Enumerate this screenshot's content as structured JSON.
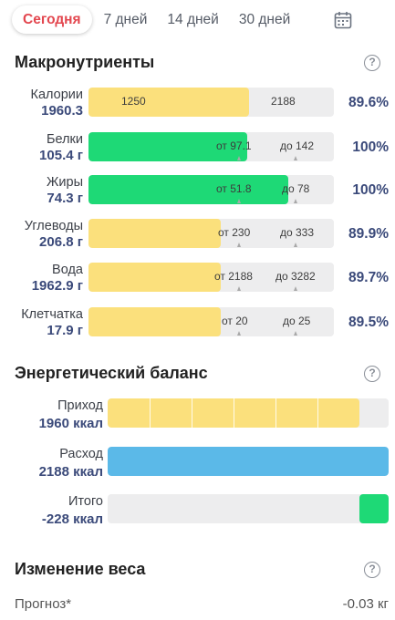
{
  "tabs": [
    {
      "label": "Сегодня",
      "active": true
    },
    {
      "label": "7 дней"
    },
    {
      "label": "14 дней"
    },
    {
      "label": "30 дней"
    }
  ],
  "calendar_icon": "calendar-icon",
  "colors": {
    "accent": "#e3474f",
    "yellow": "#fbe07c",
    "green": "#1ed976",
    "blue": "#5bb9e8",
    "value_text": "#3b4a7a"
  },
  "macros": {
    "title": "Макронутриенты",
    "help": "?",
    "rows": [
      {
        "name": "Калории",
        "value": "1960.3",
        "label_a": "1250",
        "label_b": "2188",
        "percent": "89.6%",
        "fill_fraction": 0.655,
        "color": "yellow"
      },
      {
        "name": "Белки",
        "value": "105.4 г",
        "label_a": "от 97.1",
        "label_b": "до 142",
        "percent": "100%",
        "fill_fraction": 0.645,
        "color": "green"
      },
      {
        "name": "Жиры",
        "value": "74.3 г",
        "label_a": "от 51.8",
        "label_b": "до 78",
        "percent": "100%",
        "fill_fraction": 0.815,
        "color": "green"
      },
      {
        "name": "Углеводы",
        "value": "206.8 г",
        "label_a": "от 230",
        "label_b": "до 333",
        "percent": "89.9%",
        "fill_fraction": 0.54,
        "color": "yellow"
      },
      {
        "name": "Вода",
        "value": "1962.9 г",
        "label_a": "от 2188",
        "label_b": "до 3282",
        "percent": "89.7%",
        "fill_fraction": 0.54,
        "color": "yellow"
      },
      {
        "name": "Клетчатка",
        "value": "17.9 г",
        "label_a": "от 20",
        "label_b": "до 25",
        "percent": "89.5%",
        "fill_fraction": 0.54,
        "color": "yellow"
      }
    ]
  },
  "energy": {
    "title": "Энергетический баланс",
    "help": "?",
    "rows": [
      {
        "name": "Приход",
        "value": "1960 ккал",
        "fill_fraction": 0.895,
        "color": "yellow",
        "segments": 6
      },
      {
        "name": "Расход",
        "value": "2188 ккал",
        "fill_fraction": 1.0,
        "color": "blue",
        "segments": 0
      },
      {
        "name": "Итого",
        "value": "-228 ккал",
        "fill_fraction": 0.105,
        "color": "green",
        "segments": 0,
        "align": "right"
      }
    ]
  },
  "weight": {
    "title": "Изменение веса",
    "help": "?",
    "forecast_label": "Прогноз*",
    "forecast_value": "-0.03 кг"
  }
}
